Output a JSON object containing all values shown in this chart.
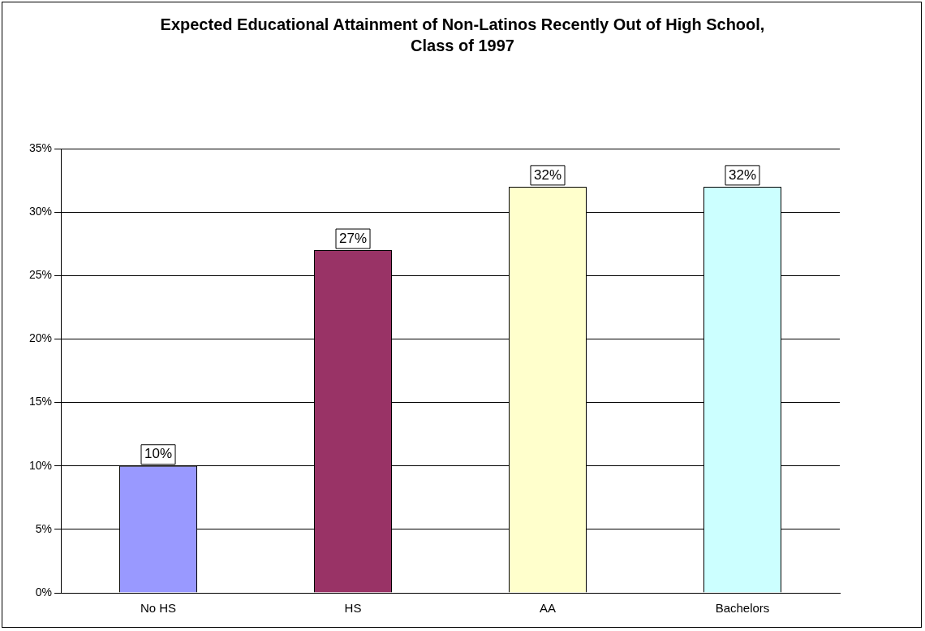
{
  "chart_data": {
    "type": "bar",
    "title": "Expected Educational Attainment of Non-Latinos Recently Out of High School, Class of 1997",
    "categories": [
      "No HS",
      "HS",
      "AA",
      "Bachelors"
    ],
    "values": [
      10,
      27,
      32,
      32
    ],
    "colors": [
      "#9999ff",
      "#993366",
      "#ffffcc",
      "#ccffff"
    ],
    "value_labels": [
      "10%",
      "27%",
      "32%",
      "32%"
    ],
    "ylim": [
      0,
      35
    ],
    "yticks": [
      {
        "value": 0,
        "label": "0%"
      },
      {
        "value": 5,
        "label": "5%"
      },
      {
        "value": 10,
        "label": "10%"
      },
      {
        "value": 15,
        "label": "15%"
      },
      {
        "value": 20,
        "label": "20%"
      },
      {
        "value": 25,
        "label": "25%"
      },
      {
        "value": 30,
        "label": "30%"
      },
      {
        "value": 35,
        "label": "35%"
      }
    ],
    "grid": "y",
    "legend": false
  }
}
